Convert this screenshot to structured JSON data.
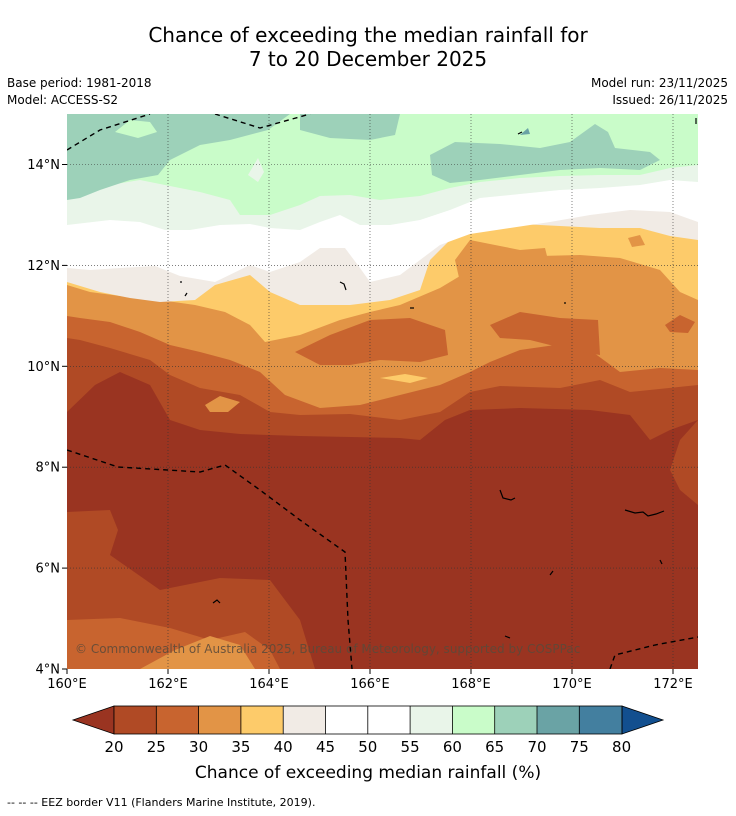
{
  "title": {
    "line1": "Chance of exceeding the median rainfall for",
    "line2": "7 to 20 December 2025"
  },
  "meta": {
    "base_period": "Base period: 1981-2018",
    "model": "Model: ACCESS-S2",
    "model_run": "Model run: 23/11/2025",
    "issued": "Issued: 26/11/2025"
  },
  "map": {
    "lon_range": [
      160,
      172.5
    ],
    "lat_range": [
      4,
      15
    ],
    "x_ticks": [
      "160°E",
      "162°E",
      "164°E",
      "166°E",
      "168°E",
      "170°E",
      "172°E"
    ],
    "y_ticks": [
      "4°N",
      "6°N",
      "8°N",
      "10°N",
      "12°N",
      "14°N"
    ],
    "copyright": "© Commonwealth of Australia 2025, Bureau of Meteorology, supported by COSPPac"
  },
  "colorbar": {
    "title": "Chance of exceeding median rainfall (%)",
    "ticks": [
      "20",
      "25",
      "30",
      "35",
      "40",
      "45",
      "50",
      "55",
      "60",
      "65",
      "70",
      "75",
      "80"
    ],
    "colors": [
      "#9a3421",
      "#b04a25",
      "#c8642f",
      "#e29446",
      "#fdcb6a",
      "#f1ebe5",
      "#ffffff",
      "#ffffff",
      "#e9f5e9",
      "#c9fcc9",
      "#9dd1b9",
      "#6aa3a5",
      "#437f9f",
      "#124f8f"
    ]
  },
  "footer": "-- -- -- EEZ border V11 (Flanders Marine Institute, 2019)."
}
